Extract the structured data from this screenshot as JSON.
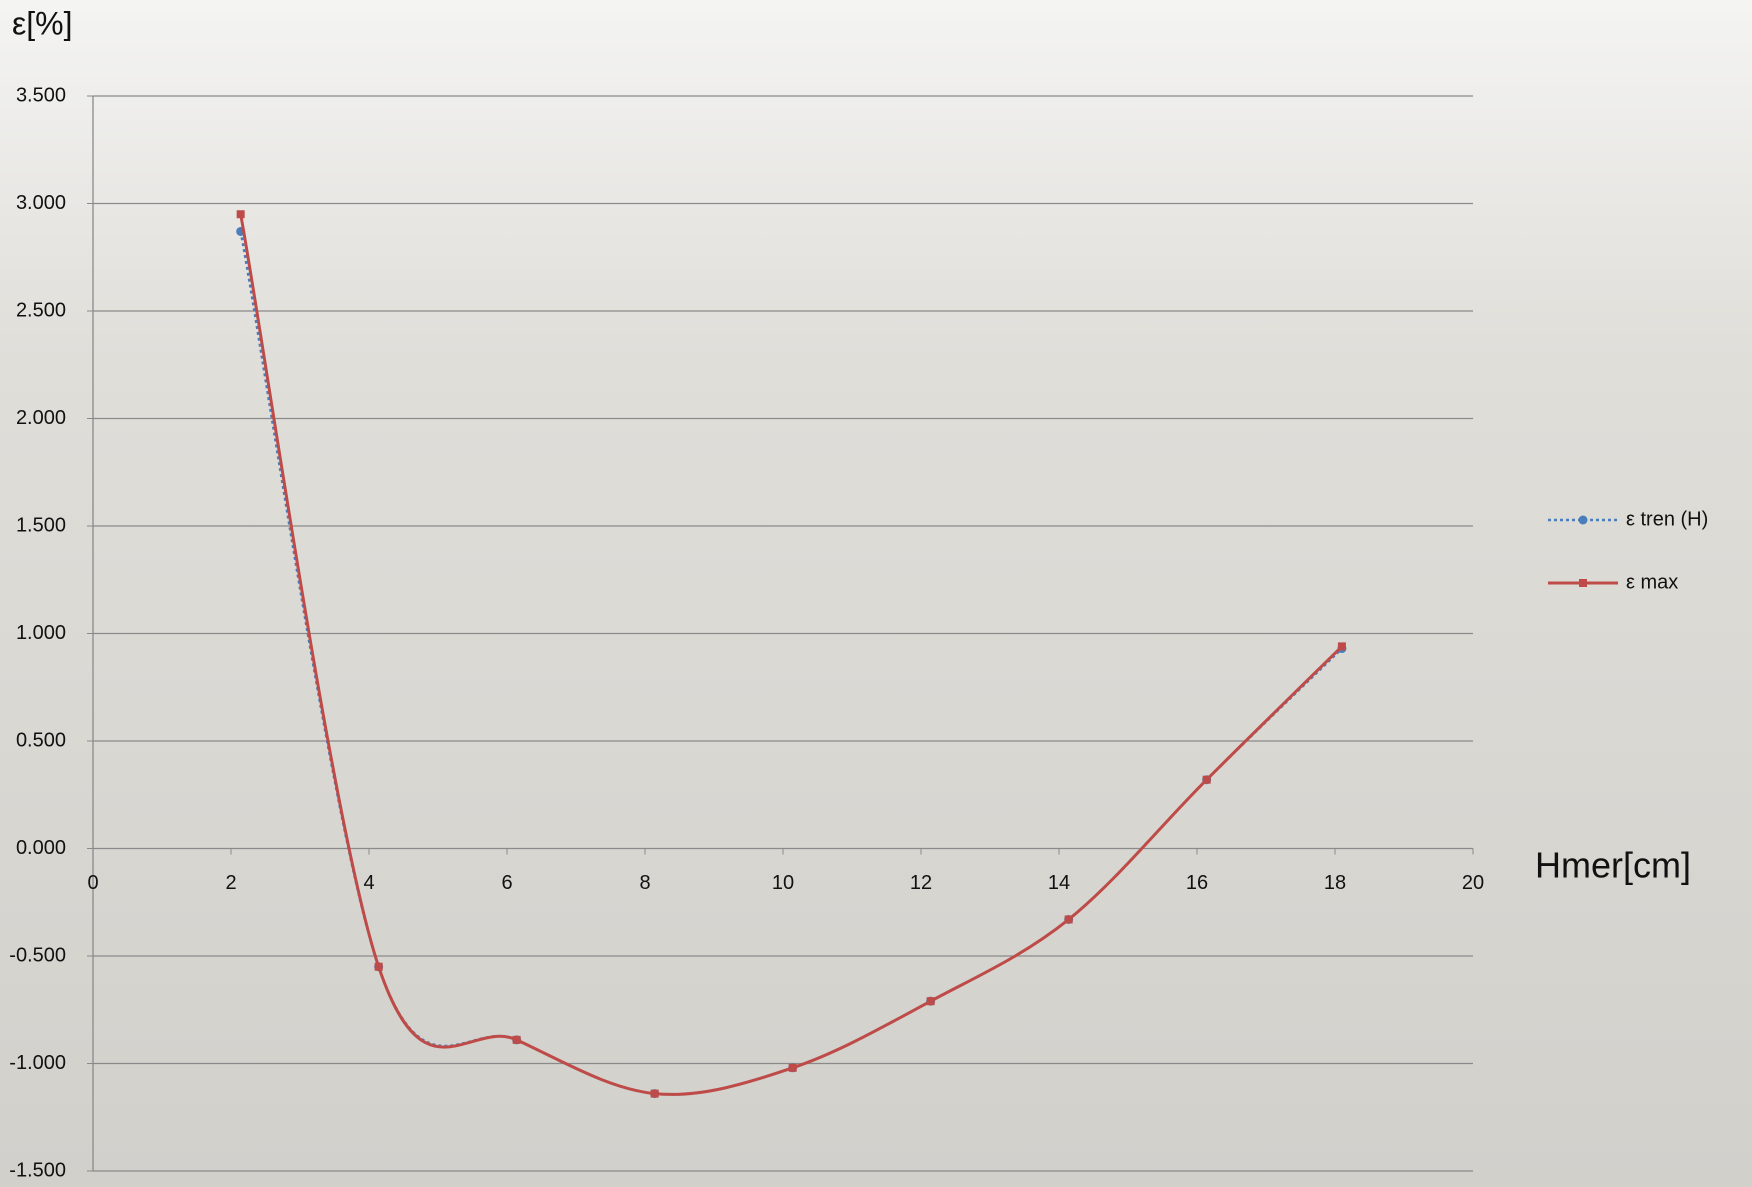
{
  "chart_data": {
    "type": "line",
    "y_label": "ε[%]",
    "x_label": "Hmer[cm]",
    "xlim": [
      0,
      20
    ],
    "xticks": [
      0,
      2,
      4,
      6,
      8,
      10,
      12,
      14,
      16,
      18,
      20
    ],
    "ylim": [
      -1.5,
      3.5
    ],
    "yticks": [
      {
        "value": -1.5,
        "label": "-1.500"
      },
      {
        "value": -1,
        "label": "-1.000"
      },
      {
        "value": -0.5,
        "label": "-0.500"
      },
      {
        "value": 0,
        "label": "0.000"
      },
      {
        "value": 0.5,
        "label": "0.500"
      },
      {
        "value": 1,
        "label": "1.000"
      },
      {
        "value": 1.5,
        "label": "1.500"
      },
      {
        "value": 2,
        "label": "2.000"
      },
      {
        "value": 2.5,
        "label": "2.500"
      },
      {
        "value": 3,
        "label": "3.000"
      },
      {
        "value": 3.5,
        "label": "3.500"
      }
    ],
    "grid": true,
    "legend": "right",
    "series": [
      {
        "name": "ε tren (H)",
        "color": "#4a7ebb",
        "dash": true,
        "marker": "circle",
        "x": [
          2.14,
          4.14,
          6.14,
          8.14,
          10.14,
          12.14,
          14.14,
          16.14,
          18.1
        ],
        "values": [
          2.87,
          -0.55,
          -0.89,
          -1.14,
          -1.02,
          -0.71,
          -0.33,
          0.32,
          0.93
        ]
      },
      {
        "name": "ε max",
        "color": "#be4b48",
        "dash": false,
        "marker": "square",
        "x": [
          2.14,
          4.14,
          6.14,
          8.14,
          10.14,
          12.14,
          14.14,
          16.14,
          18.1
        ],
        "values": [
          2.95,
          -0.55,
          -0.89,
          -1.14,
          -1.02,
          -0.71,
          -0.33,
          0.32,
          0.94
        ]
      }
    ]
  }
}
